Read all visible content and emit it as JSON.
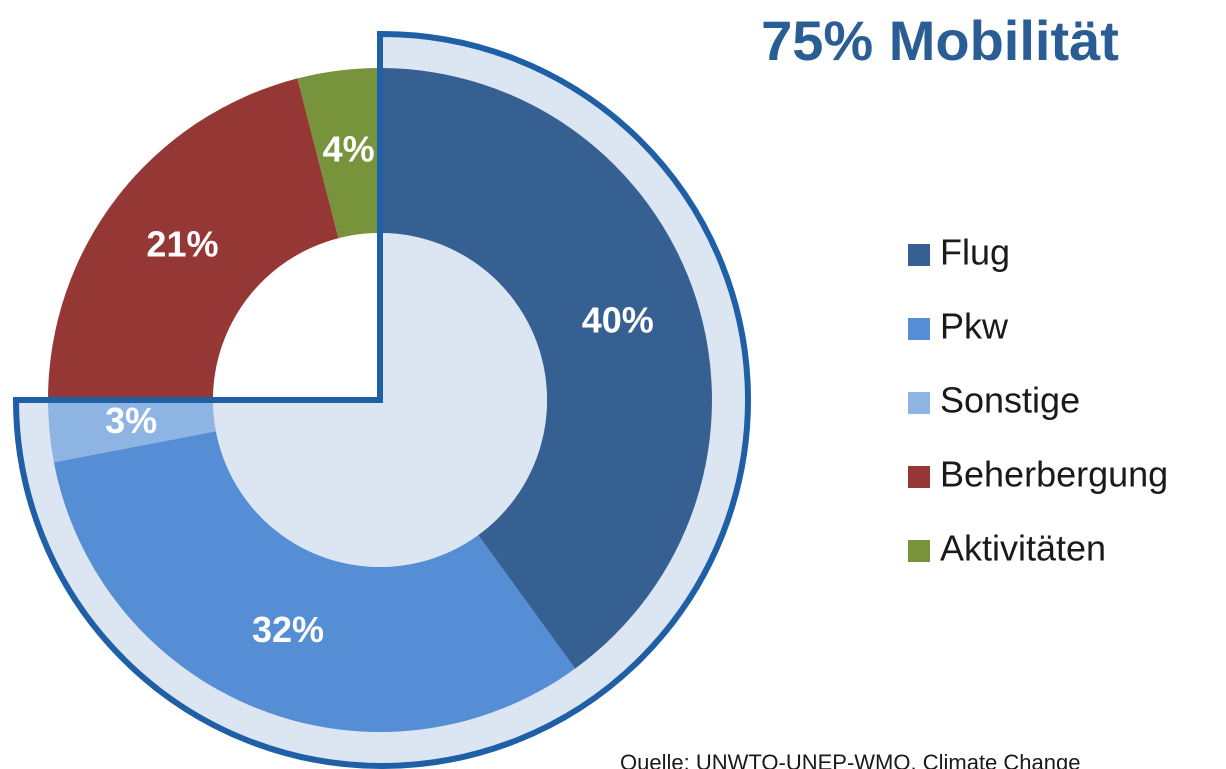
{
  "chart_data": {
    "type": "pie",
    "title": "75% Mobilität",
    "categories": [
      "Flug",
      "Pkw",
      "Sonstige",
      "Beherbergung",
      "Aktivitäten"
    ],
    "values": [
      40,
      32,
      3,
      21,
      4
    ],
    "value_labels": [
      "40%",
      "32%",
      "3%",
      "21%",
      "4%"
    ],
    "colors": [
      "#376092",
      "#558ed5",
      "#8eb4e3",
      "#953735",
      "#77933c"
    ],
    "source": "Quelle: UNWTO-UNEP-WMO, Climate Change"
  }
}
